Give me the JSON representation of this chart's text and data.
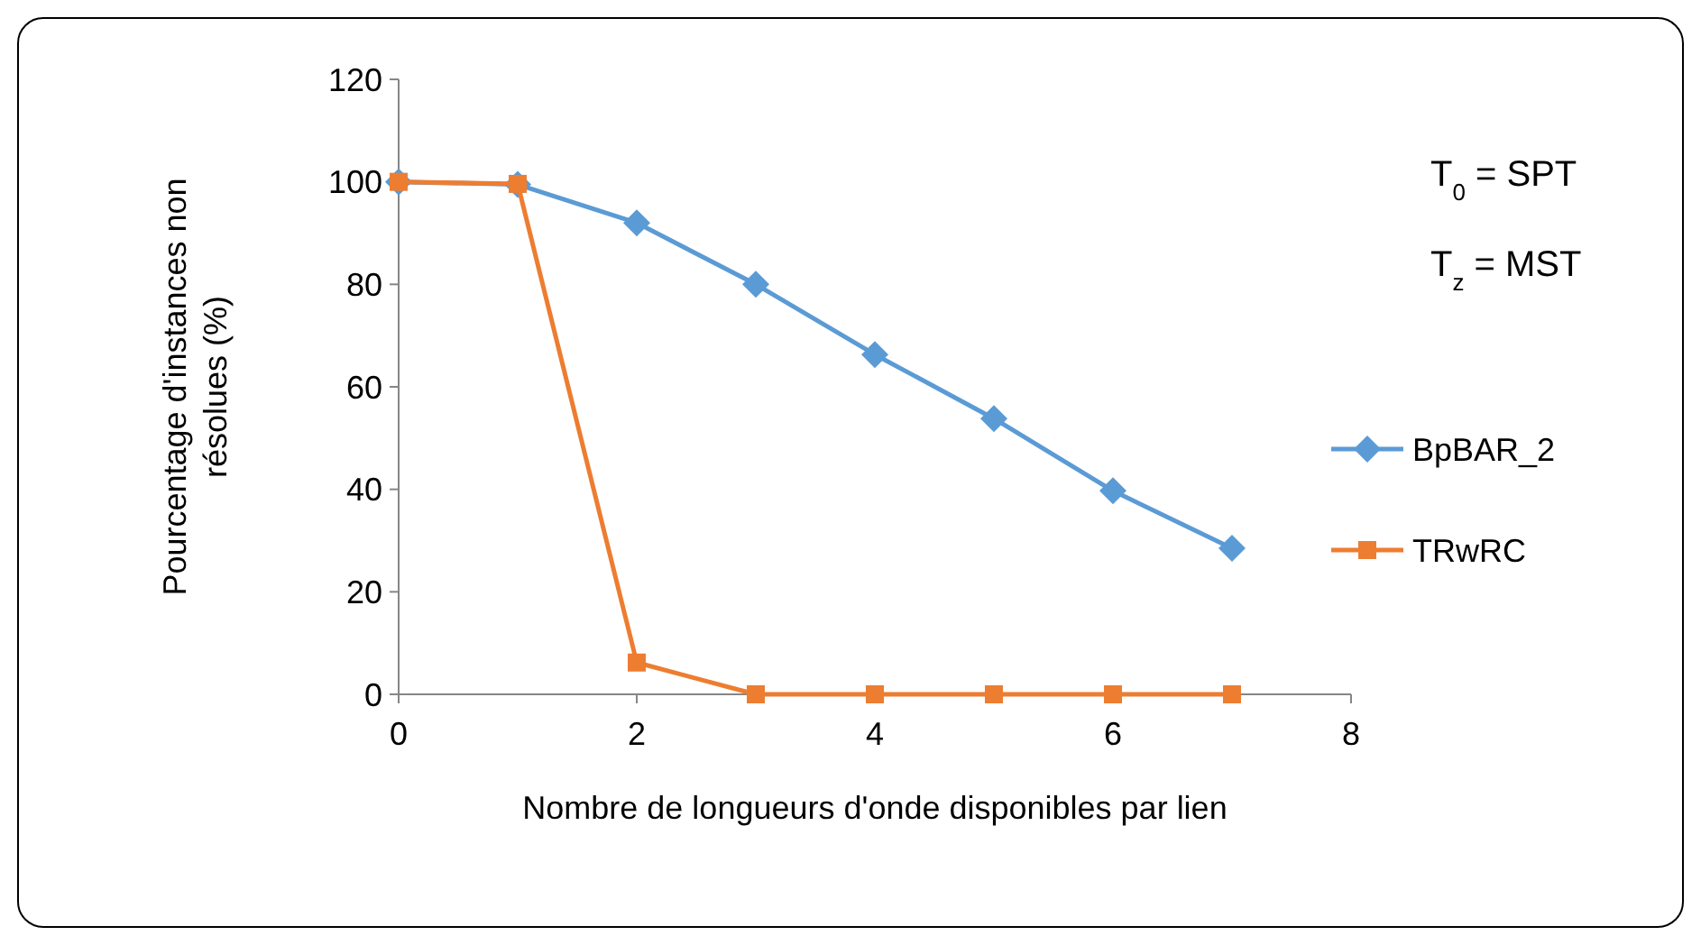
{
  "chart_data": {
    "type": "line",
    "xlabel": "Nombre de longueurs d'onde disponibles par lien",
    "ylabel": "Pourcentage d'instances non résolues  (%)",
    "x": [
      0,
      1,
      2,
      3,
      4,
      5,
      6,
      7
    ],
    "series": [
      {
        "name": "BpBAR_2",
        "color": "#5b9bd5",
        "marker": "diamond",
        "values": [
          100,
          99.5,
          92,
          80,
          66.3,
          53.8,
          39.7,
          28.5
        ]
      },
      {
        "name": "TRwRC",
        "color": "#ed7d31",
        "marker": "square",
        "values": [
          100,
          99.6,
          6.2,
          0,
          0,
          0,
          0,
          0
        ]
      }
    ],
    "xlim": [
      0,
      8
    ],
    "xticks": [
      0,
      2,
      4,
      6,
      8
    ],
    "ylim": [
      0,
      120
    ],
    "yticks": [
      0,
      20,
      40,
      60,
      80,
      100,
      120
    ],
    "grid": false,
    "legend": "right",
    "line_style": "solid",
    "annotations": [
      "T$_{0}$ = SPT",
      "T$_{z}$ = MST"
    ]
  }
}
